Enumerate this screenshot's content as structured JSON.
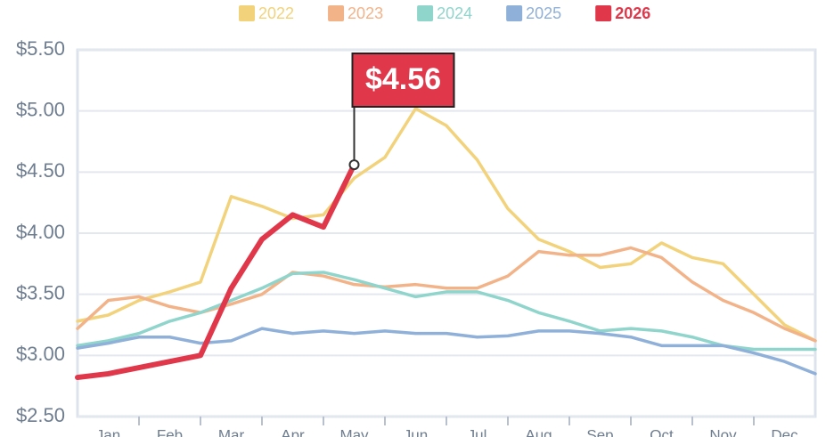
{
  "chart_data": {
    "type": "line",
    "categories": [
      "Jan",
      "Feb",
      "Mar",
      "Apr",
      "May",
      "Jun",
      "Jul",
      "Aug",
      "Sep",
      "Oct",
      "Nov",
      "Dec"
    ],
    "x": [
      0,
      0.5,
      1,
      1.5,
      2,
      2.5,
      3,
      3.5,
      4,
      4.5,
      5,
      5.5,
      6,
      6.5,
      7,
      7.5,
      8,
      8.5,
      9,
      9.5,
      10,
      10.5,
      11,
      11.5,
      12
    ],
    "xlim": [
      0,
      12
    ],
    "ylim": [
      2.5,
      5.5
    ],
    "yticks": [
      {
        "value": 2.5,
        "label": "$2.50"
      },
      {
        "value": 3.0,
        "label": "$3.00"
      },
      {
        "value": 3.5,
        "label": "$3.50"
      },
      {
        "value": 4.0,
        "label": "$4.00"
      },
      {
        "value": 4.5,
        "label": "$4.50"
      },
      {
        "value": 5.0,
        "label": "$5.00"
      },
      {
        "value": 5.5,
        "label": "$5.50"
      }
    ],
    "grid": true,
    "legend": "top",
    "series": [
      {
        "name": "2022",
        "color": "#f2d27a",
        "values": [
          3.28,
          3.33,
          3.45,
          3.52,
          3.6,
          4.3,
          4.22,
          4.12,
          4.15,
          4.45,
          4.62,
          5.02,
          4.88,
          4.6,
          4.2,
          3.95,
          3.85,
          3.72,
          3.75,
          3.92,
          3.8,
          3.75,
          3.5,
          3.25,
          3.12
        ]
      },
      {
        "name": "2023",
        "color": "#f3b389",
        "values": [
          3.22,
          3.45,
          3.48,
          3.4,
          3.35,
          3.42,
          3.5,
          3.68,
          3.65,
          3.58,
          3.56,
          3.58,
          3.55,
          3.55,
          3.65,
          3.85,
          3.82,
          3.82,
          3.88,
          3.8,
          3.6,
          3.45,
          3.35,
          3.22,
          3.12
        ]
      },
      {
        "name": "2024",
        "color": "#8fd5cc",
        "values": [
          3.08,
          3.12,
          3.18,
          3.28,
          3.35,
          3.45,
          3.55,
          3.67,
          3.68,
          3.62,
          3.55,
          3.48,
          3.52,
          3.52,
          3.45,
          3.35,
          3.28,
          3.2,
          3.22,
          3.2,
          3.15,
          3.08,
          3.05,
          3.05,
          3.05
        ]
      },
      {
        "name": "2025",
        "color": "#8fb0d8",
        "values": [
          3.06,
          3.1,
          3.15,
          3.15,
          3.1,
          3.12,
          3.22,
          3.18,
          3.2,
          3.18,
          3.2,
          3.18,
          3.18,
          3.15,
          3.16,
          3.2,
          3.2,
          3.18,
          3.15,
          3.08,
          3.08,
          3.08,
          3.02,
          2.95,
          2.85
        ]
      },
      {
        "name": "2026",
        "color": "#e0384a",
        "values": [
          2.82,
          2.85,
          2.9,
          2.95,
          3.0,
          3.55,
          3.95,
          4.15,
          4.05,
          4.56,
          null,
          null,
          null,
          null,
          null,
          null,
          null,
          null,
          null,
          null,
          null,
          null,
          null,
          null,
          null
        ]
      }
    ],
    "annotation": {
      "text": "$4.56",
      "value": 4.56
    }
  }
}
